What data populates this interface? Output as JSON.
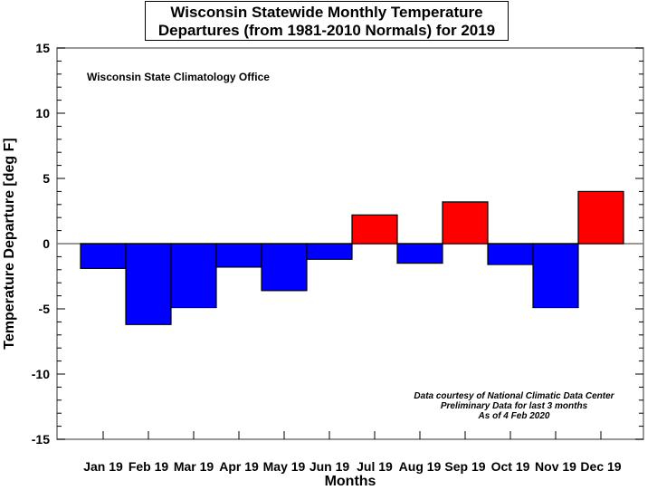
{
  "chart_data": {
    "type": "bar",
    "title_line1": "Wisconsin Statewide Monthly Temperature",
    "title_line2": "Departures (from 1981-2010 Normals) for 2019",
    "xlabel": "Months",
    "ylabel": "Temperature Departure [deg F]",
    "ylim": [
      -15,
      15
    ],
    "yticks": [
      15,
      10,
      5,
      0,
      -5,
      -10,
      -15
    ],
    "categories": [
      "Jan 19",
      "Feb 19",
      "Mar 19",
      "Apr 19",
      "May 19",
      "Jun 19",
      "Jul 19",
      "Aug 19",
      "Sep 19",
      "Oct 19",
      "Nov 19",
      "Dec 19"
    ],
    "values": [
      -1.9,
      -6.2,
      -4.9,
      -1.8,
      -3.6,
      -1.2,
      2.2,
      -1.5,
      3.2,
      -1.6,
      -4.9,
      4.0
    ],
    "colors": {
      "positive": "#ff0000",
      "negative": "#0000ff"
    },
    "annotation_top": "Wisconsin State Climatology Office",
    "annotation_bottom": [
      "Data courtesy of National Climatic Data Center",
      "Preliminary Data for last 3 months",
      "As of 4 Feb 2020"
    ]
  }
}
